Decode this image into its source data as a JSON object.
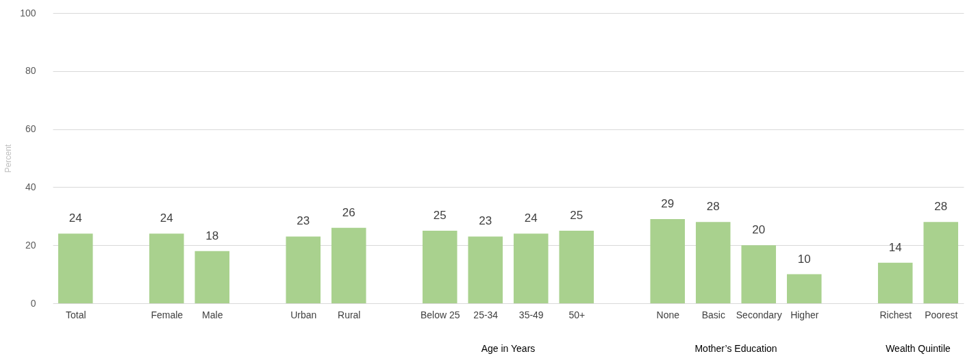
{
  "chart_data": {
    "type": "bar",
    "ylabel": "Percent",
    "categories": [
      "Total",
      null,
      "Female",
      "Male",
      null,
      "Urban",
      "Rural",
      null,
      "Below 25",
      "25-34",
      "35-49",
      "50+",
      null,
      "None",
      "Basic",
      "Secondary",
      "Higher",
      null,
      "Richest",
      "Poorest"
    ],
    "values": [
      24,
      null,
      24,
      18,
      null,
      23,
      26,
      null,
      25,
      23,
      24,
      25,
      null,
      29,
      28,
      20,
      10,
      null,
      14,
      28
    ],
    "color": "#a9d18e",
    "ylim": [
      0,
      100
    ],
    "yticks": [
      0,
      20,
      40,
      60,
      80,
      100
    ],
    "grid": "y",
    "data_labels": true,
    "annotations": [
      "Age in Years",
      "Mother’s Education",
      "Wealth Quintile"
    ]
  }
}
